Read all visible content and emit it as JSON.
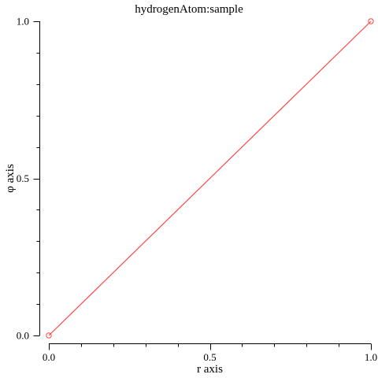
{
  "chart_data": {
    "type": "line",
    "title": "hydrogenAtom:sample",
    "xlabel": "r axis",
    "ylabel": "φ axis",
    "xlim": [
      0.0,
      1.0
    ],
    "ylim": [
      0.0,
      1.0
    ],
    "x_major_ticks": [
      0.0,
      0.5,
      1.0
    ],
    "x_major_tick_labels": [
      "0.0",
      "0.5",
      "1.0"
    ],
    "x_minor_ticks": [
      0.1,
      0.2,
      0.3,
      0.4,
      0.6,
      0.7,
      0.8,
      0.9
    ],
    "y_major_ticks": [
      0.0,
      0.5,
      1.0
    ],
    "y_major_tick_labels": [
      "0.0",
      "0.5",
      "1.0"
    ],
    "y_minor_ticks": [
      0.1,
      0.2,
      0.3,
      0.4,
      0.6,
      0.7,
      0.8,
      0.9
    ],
    "grid": false,
    "series": [
      {
        "x": [
          0.0,
          1.0
        ],
        "y": [
          0.0,
          1.0
        ],
        "color": "#ff4444",
        "markers": "open-circle"
      }
    ]
  }
}
